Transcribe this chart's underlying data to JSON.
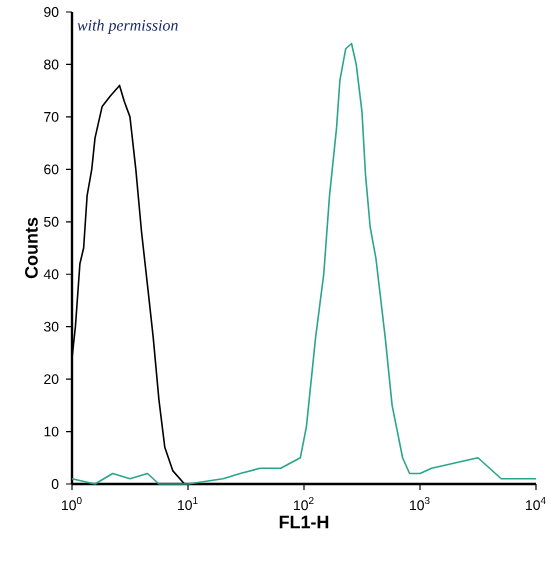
{
  "chart_data": {
    "type": "line",
    "xlabel": "FL1-H",
    "ylabel": "Counts",
    "log": "x",
    "xlim": [
      1,
      10000
    ],
    "xticks": [
      {
        "value": 1,
        "label": "10$^{0}$"
      },
      {
        "value": 10,
        "label": "10$^{1}$"
      },
      {
        "value": 100,
        "label": "10$^{2}$"
      },
      {
        "value": 1000,
        "label": "10$^{3}$"
      },
      {
        "value": 10000,
        "label": "10$^{4}$"
      }
    ],
    "ylim": [
      0,
      90
    ],
    "yticks": [
      0,
      10,
      20,
      30,
      40,
      50,
      60,
      70,
      80,
      90
    ],
    "grid": false,
    "marker": "none",
    "line_style": "solid",
    "annotations": [
      "with permission"
    ],
    "series": [
      {
        "color": "#000000",
        "x": [
          1,
          1.07,
          1.17,
          1.26,
          1.35,
          1.48,
          1.58,
          1.82,
          2.14,
          2.57,
          2.82,
          3.16,
          3.55,
          3.98,
          4.47,
          5.01,
          5.62,
          6.31,
          7.41,
          9.33
        ],
        "values": [
          24,
          30,
          42,
          45,
          55,
          60,
          66,
          72,
          74,
          76,
          73,
          70,
          60,
          48,
          38,
          28,
          16,
          7,
          2.5,
          0
        ]
      },
      {
        "color": "#2aa58a",
        "x": [
          1,
          1.58,
          2.24,
          3.16,
          4.47,
          5.62,
          10,
          20,
          28.2,
          41.7,
          63,
          93,
          105,
          126,
          148,
          166,
          191,
          204,
          229,
          257,
          282,
          316,
          339,
          372,
          417,
          501,
          575,
          708,
          813,
          1000,
          1259,
          1995,
          3162,
          3981,
          5012,
          10000
        ],
        "values": [
          1,
          0,
          2,
          1,
          2,
          0,
          0,
          1,
          2,
          3,
          3,
          5,
          11,
          28,
          40,
          55,
          68,
          77,
          83,
          84,
          80,
          71,
          59,
          49,
          43,
          28,
          15,
          5,
          2,
          2,
          3,
          4,
          5,
          3,
          1,
          1
        ]
      }
    ]
  }
}
